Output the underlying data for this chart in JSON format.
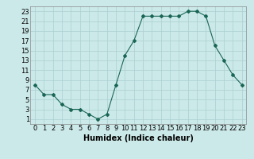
{
  "x": [
    0,
    1,
    2,
    3,
    4,
    5,
    6,
    7,
    8,
    9,
    10,
    11,
    12,
    13,
    14,
    15,
    16,
    17,
    18,
    19,
    20,
    21,
    22,
    23
  ],
  "y": [
    8,
    6,
    6,
    4,
    3,
    3,
    2,
    1,
    2,
    8,
    14,
    17,
    22,
    22,
    22,
    22,
    22,
    23,
    23,
    22,
    16,
    13,
    10,
    8
  ],
  "line_color": "#1a6655",
  "marker": "D",
  "marker_size": 2,
  "bg_color": "#cce9e9",
  "grid_color": "#aacfcf",
  "xlabel": "Humidex (Indice chaleur)",
  "xlim": [
    -0.5,
    23.5
  ],
  "ylim": [
    0,
    24
  ],
  "yticks": [
    1,
    3,
    5,
    7,
    9,
    11,
    13,
    15,
    17,
    19,
    21,
    23
  ],
  "xticks": [
    0,
    1,
    2,
    3,
    4,
    5,
    6,
    7,
    8,
    9,
    10,
    11,
    12,
    13,
    14,
    15,
    16,
    17,
    18,
    19,
    20,
    21,
    22,
    23
  ],
  "xlabel_fontsize": 7,
  "tick_fontsize": 6,
  "linewidth": 0.8
}
